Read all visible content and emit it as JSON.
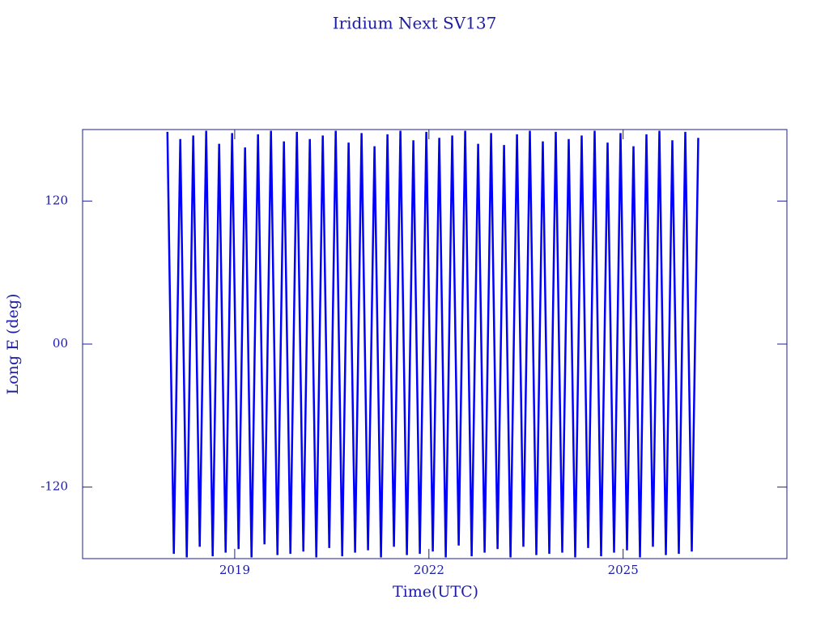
{
  "chart_data": {
    "type": "line",
    "title": "Iridium Next SV137",
    "xlabel": "Time(UTC)",
    "ylabel": "Long E (deg)",
    "x": [
      2017.96,
      2018.06,
      2018.16,
      2018.26,
      2018.36,
      2018.46,
      2018.56,
      2018.66,
      2018.76,
      2018.86,
      2018.96,
      2019.06,
      2019.16,
      2019.26,
      2019.36,
      2019.46,
      2019.56,
      2019.66,
      2019.76,
      2019.86,
      2019.96,
      2020.06,
      2020.16,
      2020.26,
      2020.36,
      2020.46,
      2020.56,
      2020.66,
      2020.76,
      2020.86,
      2020.96,
      2021.06,
      2021.16,
      2021.26,
      2021.36,
      2021.46,
      2021.56,
      2021.66,
      2021.76,
      2021.86,
      2021.96,
      2022.06,
      2022.16,
      2022.26,
      2022.36,
      2022.46,
      2022.56,
      2022.66,
      2022.76,
      2022.86,
      2022.96,
      2023.06,
      2023.16,
      2023.26,
      2023.36,
      2023.46,
      2023.56,
      2023.66,
      2023.76,
      2023.86,
      2023.96,
      2024.06,
      2024.16,
      2024.26,
      2024.36,
      2024.46,
      2024.56,
      2024.66,
      2024.76,
      2024.86,
      2024.96,
      2025.06,
      2025.16,
      2025.26,
      2025.36,
      2025.46,
      2025.56,
      2025.66,
      2025.76,
      2025.86,
      2025.96,
      2026.06,
      2026.16
    ],
    "series": [
      {
        "color": "#0000ff",
        "values": [
          178,
          -176,
          172,
          -179,
          175,
          -170,
          179,
          -178,
          168,
          -175,
          177,
          -172,
          165,
          -179,
          176,
          -168,
          179,
          -177,
          170,
          -176,
          178,
          -174,
          172,
          -179,
          175,
          -171,
          179,
          -178,
          169,
          -175,
          177,
          -173,
          166,
          -179,
          176,
          -170,
          179,
          -177,
          171,
          -176,
          178,
          -174,
          173,
          -179,
          175,
          -169,
          179,
          -178,
          168,
          -175,
          177,
          -172,
          167,
          -179,
          176,
          -170,
          179,
          -177,
          170,
          -176,
          178,
          -175,
          172,
          -179,
          175,
          -171,
          179,
          -178,
          169,
          -175,
          177,
          -173,
          166,
          -179,
          176,
          -170,
          179,
          -177,
          171,
          -176,
          178,
          -174,
          173
        ]
      }
    ],
    "xlim": [
      2016.65,
      2027.53
    ],
    "xticks": [
      2019,
      2022,
      2025
    ],
    "ylim": [
      -180,
      180
    ],
    "yticks": [
      -120,
      {
        "value": 0,
        "label": "00"
      },
      120
    ]
  }
}
